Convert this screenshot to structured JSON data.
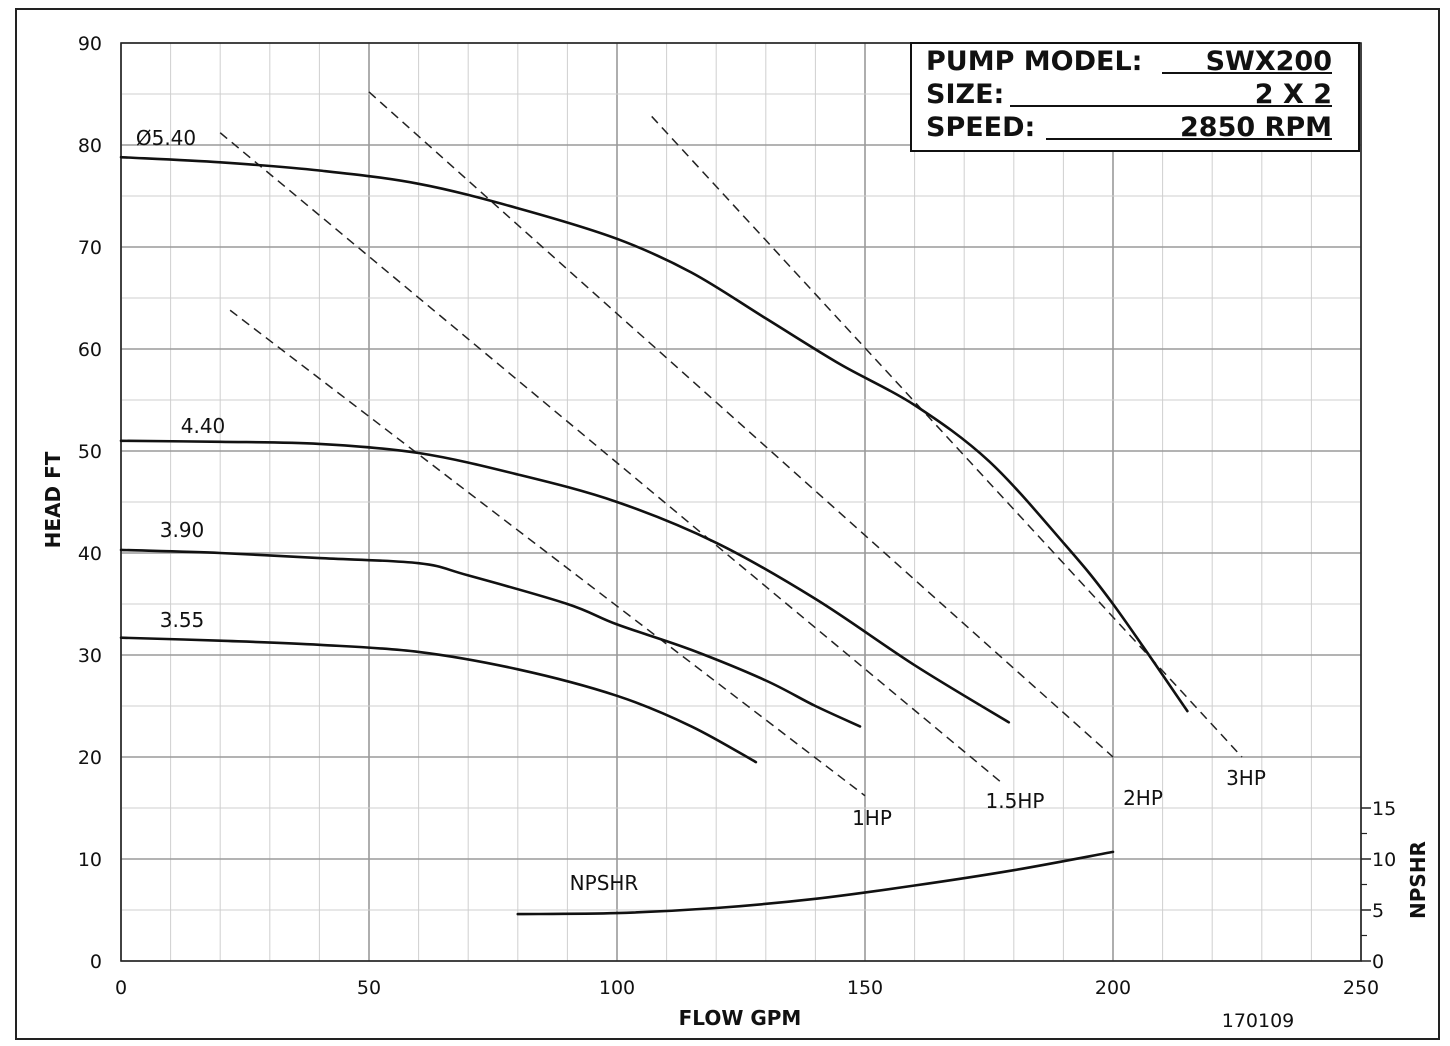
{
  "chart_data": {
    "type": "line",
    "info_box": {
      "model_label": "PUMP MODEL:",
      "model_value": "SWX200",
      "size_label": "SIZE:",
      "size_value": "2 X 2",
      "speed_label": "SPEED:",
      "speed_value": "2850 RPM"
    },
    "xlabel": "FLOW GPM",
    "ylabel": "HEAD FT",
    "y2label": "NPSHR",
    "xlim": [
      0,
      250
    ],
    "ylim": [
      0,
      90
    ],
    "xticks": [
      "0",
      "50",
      "100",
      "150",
      "200",
      "250"
    ],
    "yticks": [
      "0",
      "10",
      "20",
      "30",
      "40",
      "50",
      "60",
      "70",
      "80",
      "90"
    ],
    "y2ticks": [
      "0",
      "5",
      "10",
      "15"
    ],
    "grid": true,
    "footnote": "170109",
    "series": [
      {
        "name": "Ø5.40",
        "points": [
          [
            0,
            78.8
          ],
          [
            20,
            78.3
          ],
          [
            40,
            77.5
          ],
          [
            60,
            76.2
          ],
          [
            80,
            73.8
          ],
          [
            100,
            70.8
          ],
          [
            115,
            67.5
          ],
          [
            130,
            63
          ],
          [
            145,
            58.5
          ],
          [
            160,
            54.5
          ],
          [
            175,
            49
          ],
          [
            190,
            41
          ],
          [
            200,
            35
          ],
          [
            215,
            24.5
          ]
        ]
      },
      {
        "name": "4.40",
        "points": [
          [
            0,
            51
          ],
          [
            20,
            50.9
          ],
          [
            40,
            50.7
          ],
          [
            60,
            49.8
          ],
          [
            80,
            47.7
          ],
          [
            100,
            45
          ],
          [
            120,
            41
          ],
          [
            140,
            35.5
          ],
          [
            160,
            29
          ],
          [
            179,
            23.4
          ]
        ]
      },
      {
        "name": "3.90",
        "points": [
          [
            0,
            40.3
          ],
          [
            20,
            40
          ],
          [
            40,
            39.5
          ],
          [
            60,
            39
          ],
          [
            70,
            37.8
          ],
          [
            90,
            35
          ],
          [
            100,
            33
          ],
          [
            115,
            30.5
          ],
          [
            130,
            27.5
          ],
          [
            140,
            25
          ],
          [
            149,
            23
          ]
        ]
      },
      {
        "name": "3.55",
        "points": [
          [
            0,
            31.7
          ],
          [
            20,
            31.4
          ],
          [
            40,
            31
          ],
          [
            60,
            30.3
          ],
          [
            80,
            28.6
          ],
          [
            100,
            26
          ],
          [
            115,
            23
          ],
          [
            128,
            19.5
          ]
        ]
      }
    ],
    "power_lines": [
      {
        "name": "1HP",
        "x": [
          22,
          150
        ],
        "y": [
          63.8,
          16.2
        ]
      },
      {
        "name": "1.5HP",
        "x": [
          20,
          178
        ],
        "y": [
          81.2,
          17.3
        ]
      },
      {
        "name": "2HP",
        "x": [
          50,
          200
        ],
        "y": [
          85.2,
          20
        ]
      },
      {
        "name": "3HP",
        "x": [
          107,
          226
        ],
        "y": [
          82.8,
          20
        ]
      }
    ],
    "npshr": {
      "name": "NPSHR",
      "points": [
        [
          80,
          4.6
        ],
        [
          100,
          4.7
        ],
        [
          120,
          5.2
        ],
        [
          140,
          6.1
        ],
        [
          160,
          7.4
        ],
        [
          180,
          8.9
        ],
        [
          200,
          10.7
        ]
      ]
    }
  }
}
